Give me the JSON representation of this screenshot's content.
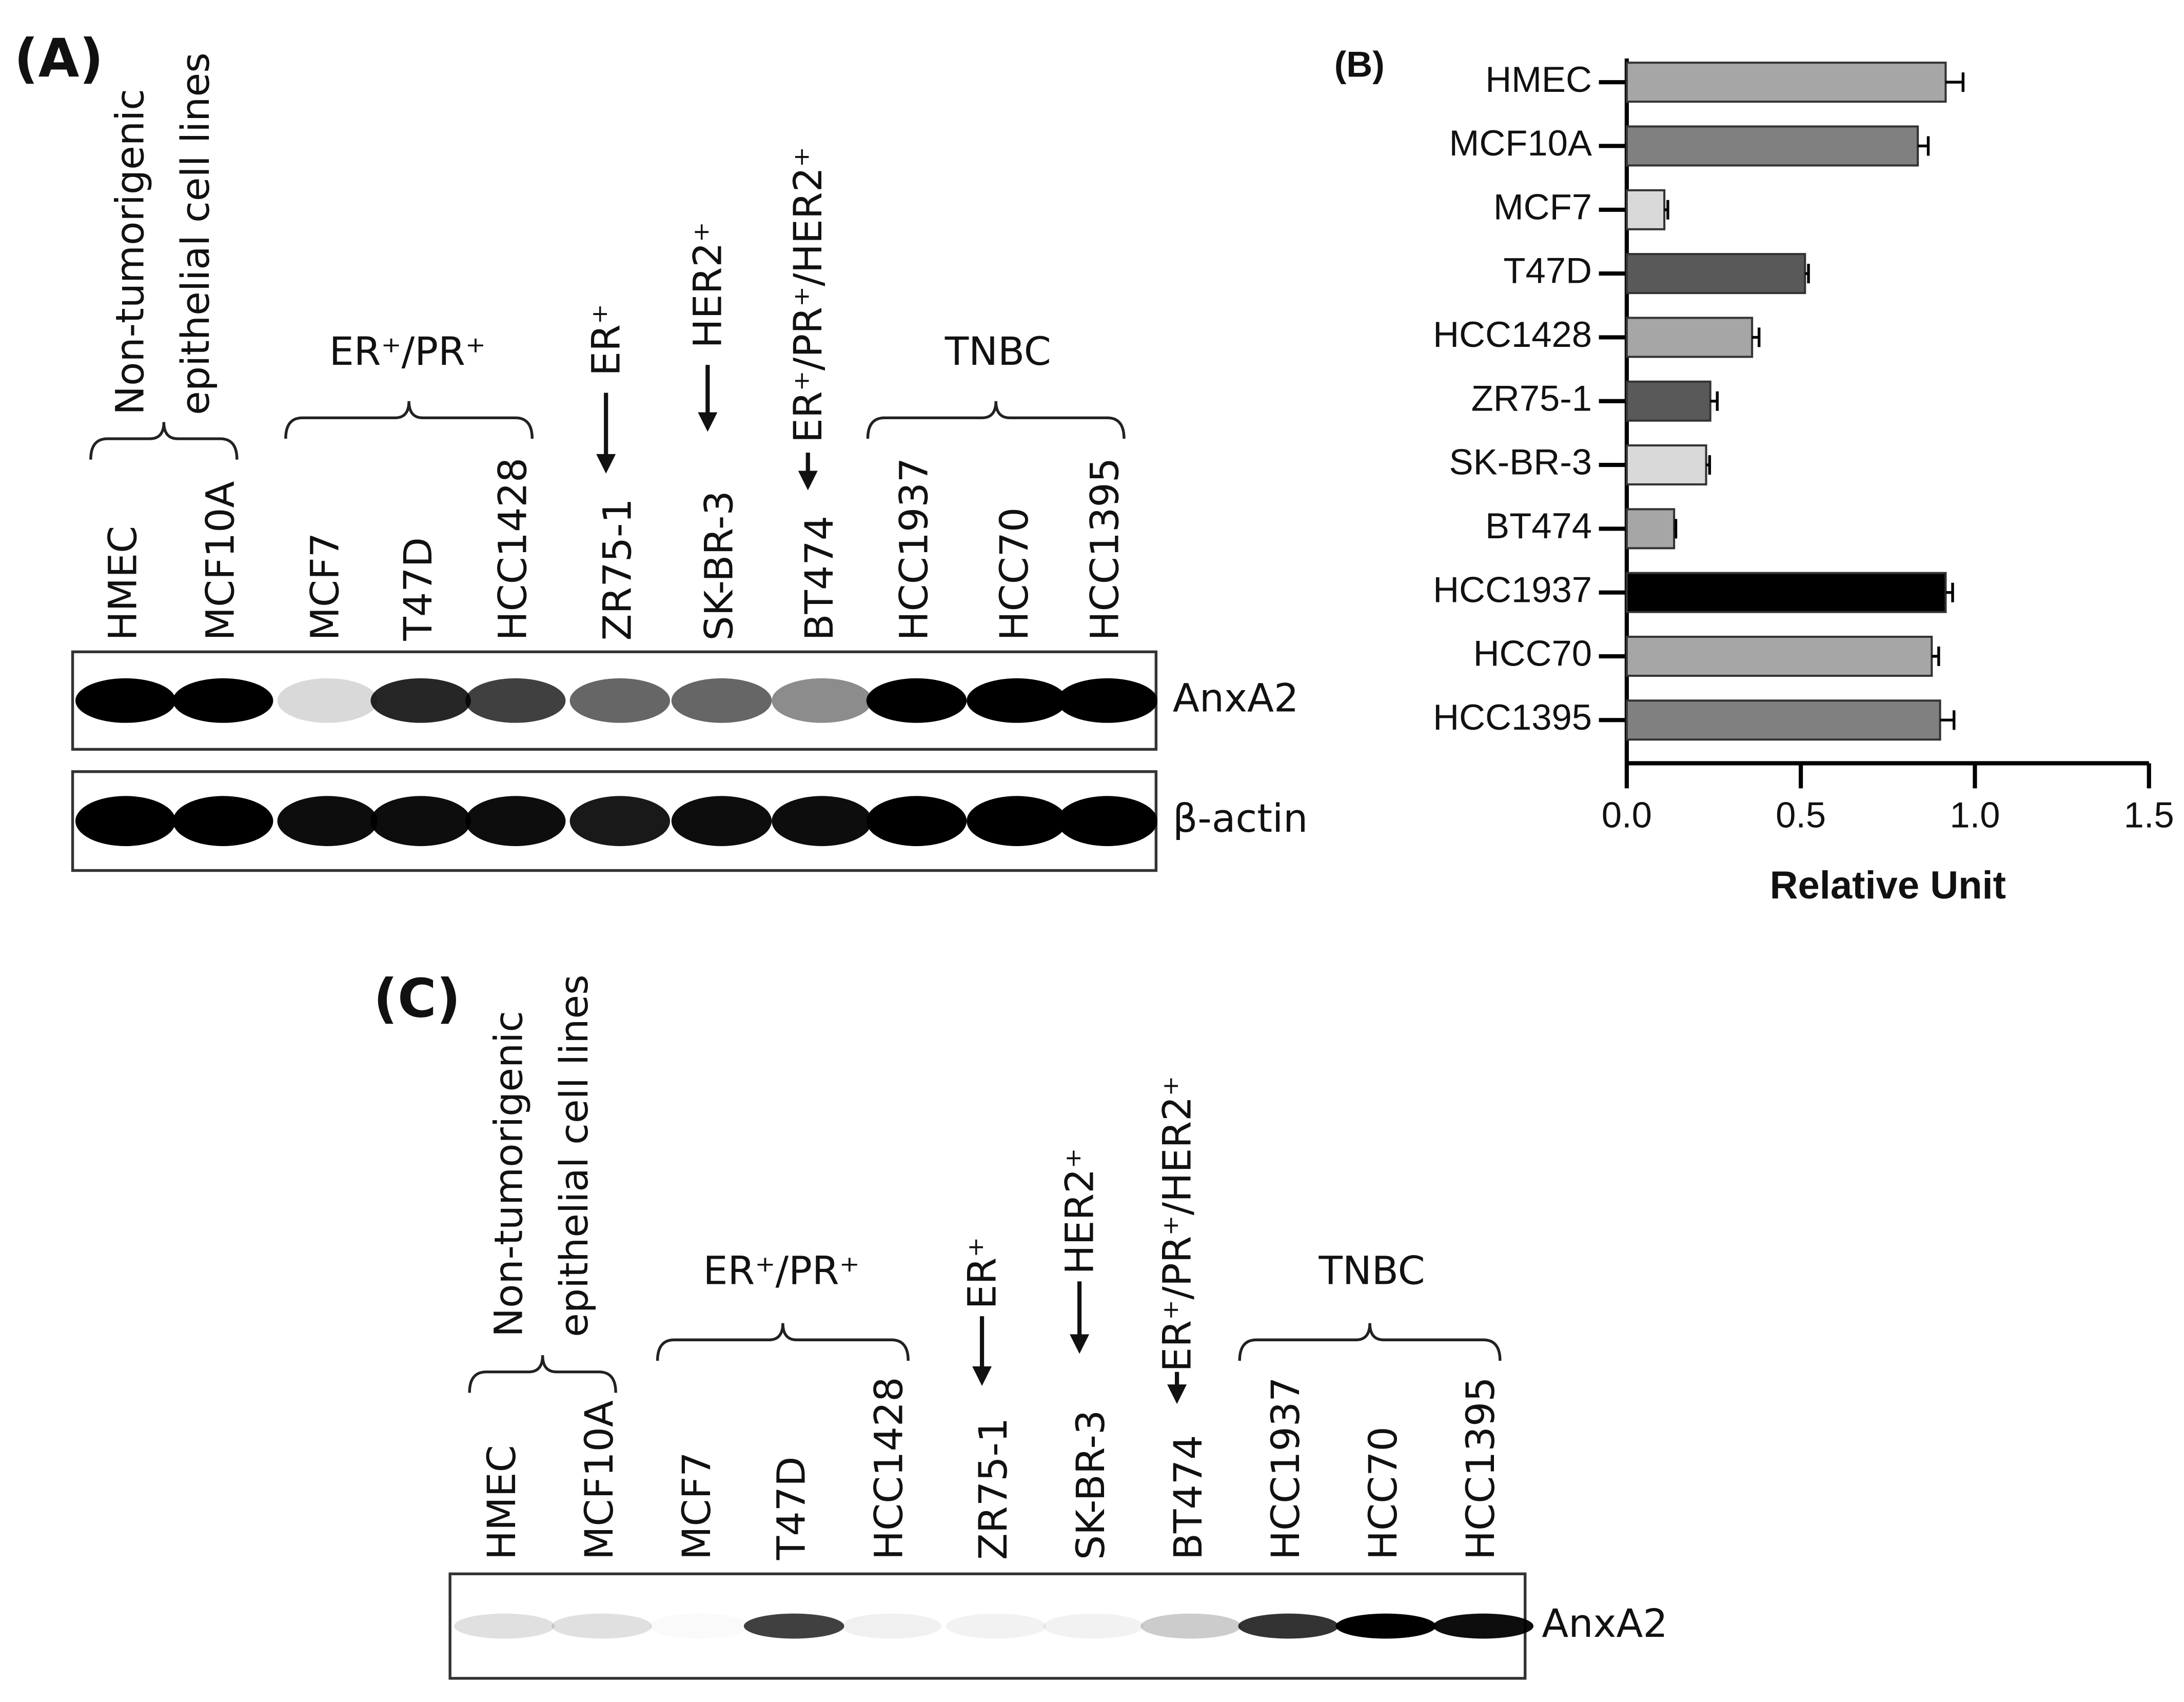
{
  "panel_a": {
    "label": "(A)",
    "groups": {
      "non_tumorigenic": [
        "Non-tumorigenic",
        "epithelial cell lines"
      ],
      "er_pr": "ER⁺/PR⁺",
      "er": "ER⁺",
      "her2": "HER2⁺",
      "er_pr_her2": "ER⁺/PR⁺/HER2⁺",
      "tnbc": "TNBC"
    },
    "lanes": [
      "HMEC",
      "MCF10A",
      "MCF7",
      "T47D",
      "HCC1428",
      "ZR75-1",
      "SK-BR-3",
      "BT474",
      "HCC1937",
      "HCC70",
      "HCC1395"
    ],
    "blots": [
      "AnxA2",
      "β-actin"
    ]
  },
  "chart_data": {
    "type": "hbar",
    "label": "(B)",
    "x_label": "Relative Unit",
    "categories": [
      "HMEC",
      "MCF10A",
      "MCF7",
      "T47D",
      "HCC1428",
      "ZR75-1",
      "SK-BR-3",
      "BT474",
      "HCC1937",
      "HCC70",
      "HCC1395"
    ],
    "values": [
      0.916,
      0.836,
      0.108,
      0.512,
      0.36,
      0.24,
      0.228,
      0.136,
      0.916,
      0.876,
      0.9
    ],
    "errors": [
      0.05,
      0.03,
      0.01,
      0.01,
      0.02,
      0.02,
      0.01,
      0.005,
      0.02,
      0.02,
      0.04
    ],
    "colors": [
      "#a6a6a6",
      "#808080",
      "#d9d9d9",
      "#595959",
      "#a6a6a6",
      "#595959",
      "#d9d9d9",
      "#a6a6a6",
      "#000000",
      "#a6a6a6",
      "#808080"
    ],
    "xlim": [
      0,
      1.5
    ],
    "xticks": [
      {
        "value": 0,
        "label": "0.0"
      },
      0.5,
      {
        "value": 1,
        "label": "1.0"
      },
      1.5
    ]
  },
  "panel_c": {
    "label": "(C)",
    "groups": {
      "non_tumorigenic": [
        "Non-tumorigenic",
        "epithelial cell lines"
      ],
      "er_pr": "ER⁺/PR⁺",
      "er": "ER⁺",
      "her2": "HER2⁺",
      "er_pr_her2": "ER⁺/PR⁺/HER2⁺",
      "tnbc": "TNBC"
    },
    "lanes": [
      "HMEC",
      "MCF10A",
      "MCF7",
      "T47D",
      "HCC1428",
      "ZR75-1",
      "SK-BR-3",
      "BT474",
      "HCC1937",
      "HCC70",
      "HCC1395"
    ],
    "blots": [
      "AnxA2"
    ]
  }
}
